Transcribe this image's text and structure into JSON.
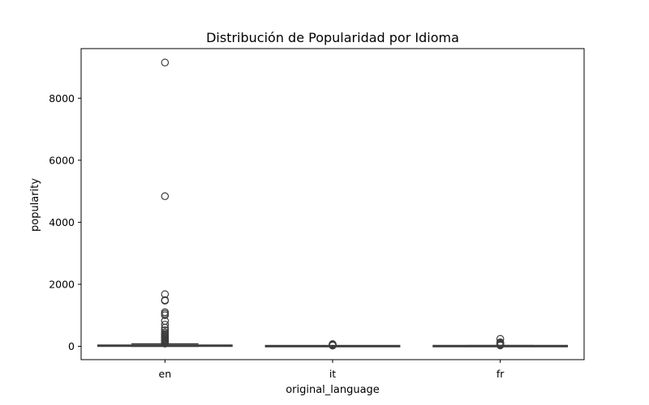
{
  "chart_data": {
    "type": "box",
    "title": "Distribución de Popularidad por Idioma",
    "xlabel": "original_language",
    "ylabel": "popularity",
    "ylim": [
      -430,
      9600
    ],
    "yticks": [
      0,
      2000,
      4000,
      6000,
      8000
    ],
    "categories": [
      "en",
      "it",
      "fr"
    ],
    "boxes": [
      {
        "category": "en",
        "whislo": 0,
        "q1": 5,
        "median": 12,
        "q3": 35,
        "whishi": 80,
        "fliers": [
          9150,
          4840,
          1680,
          1490,
          1470,
          1100,
          1050,
          1000,
          820,
          700,
          600,
          520,
          450,
          400,
          370,
          340,
          310,
          280,
          250,
          220,
          200,
          180,
          160,
          140,
          120,
          105,
          95,
          88
        ]
      },
      {
        "category": "it",
        "whislo": 0,
        "q1": 2,
        "median": 5,
        "q3": 10,
        "whishi": 20,
        "fliers": [
          70,
          55,
          45,
          38,
          30,
          25
        ]
      },
      {
        "category": "fr",
        "whislo": 0,
        "q1": 2,
        "median": 5,
        "q3": 12,
        "whishi": 25,
        "fliers": [
          240,
          130,
          100,
          85,
          70,
          55,
          40,
          30
        ]
      }
    ]
  }
}
